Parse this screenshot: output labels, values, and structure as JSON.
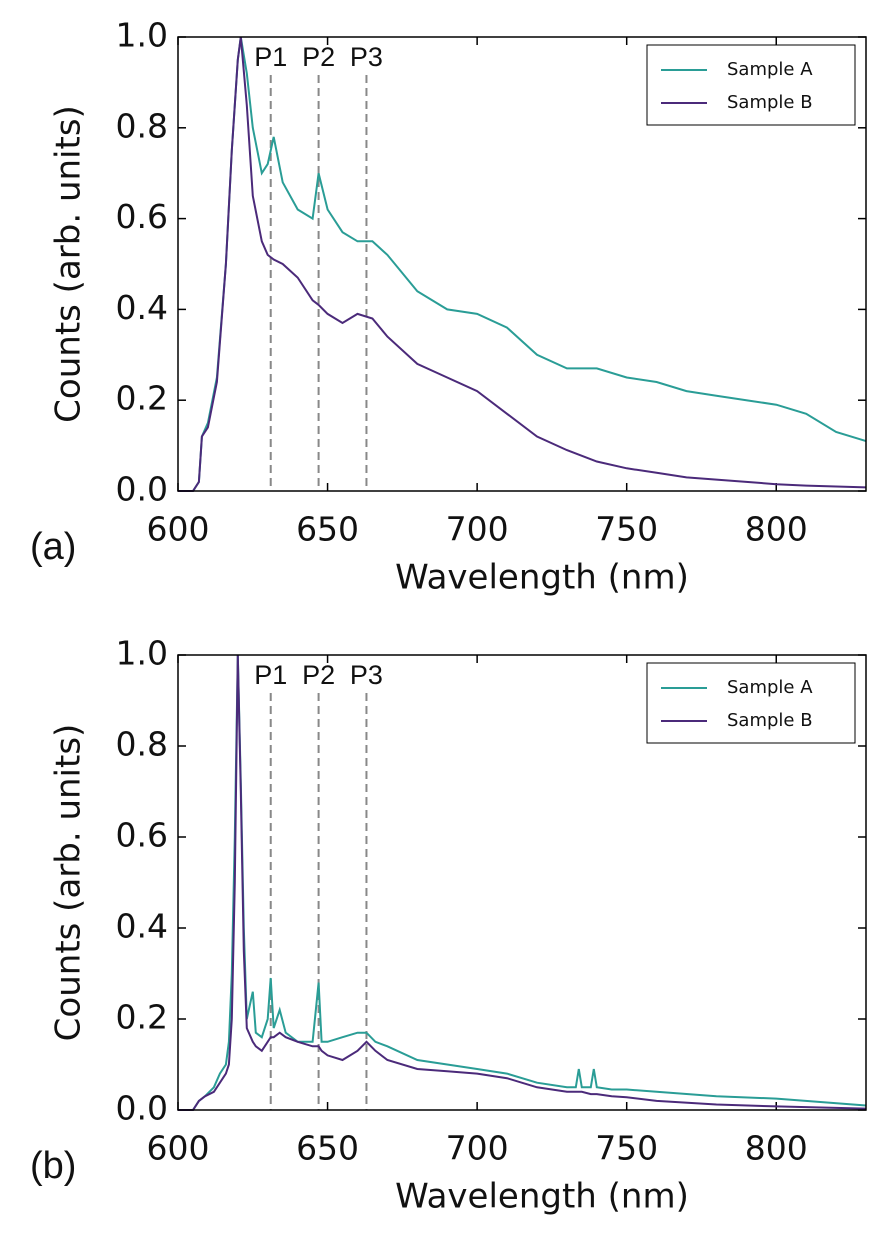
{
  "chart_data": [
    {
      "type": "line",
      "panel_label": "(a)",
      "xlabel": "Wavelength (nm)",
      "ylabel": "Counts (arb. units)",
      "xlim": [
        600,
        830
      ],
      "xticks": [
        600,
        650,
        700,
        750,
        800
      ],
      "ylim": [
        0,
        1
      ],
      "yticks": [
        {
          "value": 0,
          "label": "0.0"
        },
        0.2,
        0.4,
        0.6,
        0.8,
        {
          "value": 1,
          "label": "1.0"
        }
      ],
      "legend": "upper right",
      "markers": [
        {
          "label": "P1",
          "x": 631
        },
        {
          "label": "P2",
          "x": 647
        },
        {
          "label": "P3",
          "x": 663
        }
      ],
      "x": [
        600,
        605,
        607,
        608,
        610,
        613,
        616,
        618,
        620,
        621,
        623,
        625,
        628,
        630,
        632,
        635,
        640,
        645,
        647,
        650,
        655,
        660,
        665,
        670,
        680,
        690,
        700,
        710,
        720,
        730,
        740,
        750,
        760,
        770,
        780,
        790,
        800,
        810,
        820,
        830
      ],
      "series": [
        {
          "name": "Sample A",
          "color": "#2a9d96",
          "values": [
            0,
            0,
            0.02,
            0.12,
            0.15,
            0.25,
            0.5,
            0.75,
            0.95,
            1.0,
            0.92,
            0.8,
            0.7,
            0.72,
            0.78,
            0.68,
            0.62,
            0.6,
            0.7,
            0.62,
            0.57,
            0.55,
            0.55,
            0.52,
            0.44,
            0.4,
            0.39,
            0.36,
            0.3,
            0.27,
            0.27,
            0.25,
            0.24,
            0.22,
            0.21,
            0.2,
            0.19,
            0.17,
            0.13,
            0.11
          ]
        },
        {
          "name": "Sample B",
          "color": "#4b2a7a",
          "values": [
            0,
            0,
            0.02,
            0.12,
            0.14,
            0.24,
            0.5,
            0.75,
            0.95,
            1.0,
            0.85,
            0.65,
            0.55,
            0.52,
            0.51,
            0.5,
            0.47,
            0.42,
            0.41,
            0.39,
            0.37,
            0.39,
            0.38,
            0.34,
            0.28,
            0.25,
            0.22,
            0.17,
            0.12,
            0.09,
            0.065,
            0.05,
            0.04,
            0.03,
            0.025,
            0.02,
            0.015,
            0.012,
            0.01,
            0.008
          ]
        }
      ]
    },
    {
      "type": "line",
      "panel_label": "(b)",
      "xlabel": "Wavelength (nm)",
      "ylabel": "Counts (arb. units)",
      "xlim": [
        600,
        830
      ],
      "xticks": [
        600,
        650,
        700,
        750,
        800
      ],
      "ylim": [
        0,
        1
      ],
      "yticks": [
        {
          "value": 0,
          "label": "0.0"
        },
        0.2,
        0.4,
        0.6,
        0.8,
        {
          "value": 1,
          "label": "1.0"
        }
      ],
      "legend": "upper right",
      "markers": [
        {
          "label": "P1",
          "x": 631
        },
        {
          "label": "P2",
          "x": 647
        },
        {
          "label": "P3",
          "x": 663
        }
      ],
      "x": [
        600,
        605,
        607,
        609,
        612,
        614,
        616,
        617,
        618,
        619,
        620,
        621,
        622,
        623,
        625,
        626,
        628,
        630,
        631,
        632,
        634,
        636,
        640,
        645,
        647,
        648,
        650,
        655,
        660,
        663,
        666,
        670,
        680,
        690,
        700,
        710,
        720,
        730,
        733,
        734,
        735,
        738,
        739,
        740,
        745,
        750,
        760,
        780,
        800,
        830
      ],
      "series": [
        {
          "name": "Sample A",
          "color": "#2a9d96",
          "values": [
            0,
            0,
            0.02,
            0.03,
            0.05,
            0.08,
            0.1,
            0.15,
            0.3,
            0.6,
            1.0,
            0.72,
            0.4,
            0.2,
            0.26,
            0.17,
            0.16,
            0.2,
            0.29,
            0.18,
            0.22,
            0.17,
            0.15,
            0.15,
            0.28,
            0.15,
            0.15,
            0.16,
            0.17,
            0.17,
            0.15,
            0.14,
            0.11,
            0.1,
            0.09,
            0.08,
            0.06,
            0.05,
            0.05,
            0.09,
            0.05,
            0.05,
            0.09,
            0.05,
            0.045,
            0.045,
            0.04,
            0.03,
            0.025,
            0.01
          ]
        },
        {
          "name": "Sample B",
          "color": "#4b2a7a",
          "values": [
            0,
            0,
            0.02,
            0.03,
            0.04,
            0.06,
            0.08,
            0.1,
            0.2,
            0.5,
            1.0,
            0.7,
            0.35,
            0.18,
            0.15,
            0.14,
            0.13,
            0.15,
            0.16,
            0.16,
            0.17,
            0.16,
            0.15,
            0.14,
            0.14,
            0.13,
            0.12,
            0.11,
            0.13,
            0.15,
            0.13,
            0.11,
            0.09,
            0.085,
            0.08,
            0.07,
            0.05,
            0.04,
            0.04,
            0.04,
            0.04,
            0.035,
            0.035,
            0.035,
            0.03,
            0.028,
            0.02,
            0.012,
            0.008,
            0.003
          ]
        }
      ]
    }
  ]
}
